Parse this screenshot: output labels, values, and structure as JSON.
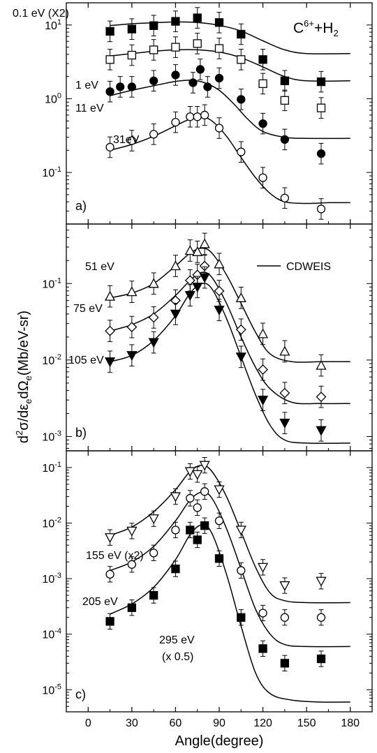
{
  "chart_data": {
    "type": "scatter",
    "title": "C6++H2",
    "title_parts": {
      "base": "C",
      "sup": "6+",
      "mid": "+H",
      "sub": "2"
    },
    "legend": {
      "entries": [
        "CDWEIS"
      ],
      "placement": "top-right of panel b"
    },
    "xlabel": "Angle(degree)",
    "ylabel": "d2σ/dεe dΩe (Mb/eV-sr)",
    "ylabel_parts": {
      "d": "d",
      "two": "2",
      "sigma": "σ/dε",
      "e1": "e",
      "domega": "dΩ",
      "e2": "e",
      "units": "(Mb/eV-sr)"
    },
    "x_ticks": [
      0,
      30,
      60,
      90,
      120,
      150,
      180
    ],
    "xlim": [
      -15,
      195
    ],
    "yscale": "log",
    "panels": [
      {
        "label": "a)",
        "ylim": [
          0.02,
          20
        ],
        "y_ticks": [
          {
            "value": 0.1,
            "base": "10",
            "exp": "-1"
          },
          {
            "value": 1,
            "base": "10",
            "exp": "0"
          },
          {
            "value": 10,
            "base": "10",
            "exp": "1"
          }
        ],
        "series": [
          {
            "name": "0.1 eV (X2)",
            "marker": "filled-square",
            "x": [
              15,
              30,
              45,
              60,
              75,
              90,
              105,
              120,
              135,
              160
            ],
            "y": [
              8.2,
              8.8,
              9.8,
              11.2,
              12.5,
              10.8,
              7.5,
              3.4,
              1.75,
              1.7
            ],
            "fit": [
              [
                15,
                9.8
              ],
              [
                30,
                10.4
              ],
              [
                45,
                10.7
              ],
              [
                60,
                11
              ],
              [
                75,
                10.8
              ],
              [
                90,
                9.9
              ],
              [
                105,
                8.3
              ],
              [
                120,
                6.1
              ],
              [
                135,
                4.6
              ],
              [
                150,
                4.1
              ],
              [
                180,
                4.1
              ]
            ]
          },
          {
            "name": "1 eV",
            "marker": "open-square",
            "x": [
              15,
              30,
              45,
              60,
              75,
              90,
              105,
              120,
              135,
              160
            ],
            "y": [
              3.4,
              3.9,
              4.6,
              5,
              5.6,
              4.8,
              3.4,
              1.6,
              0.95,
              0.75
            ],
            "fit": [
              [
                15,
                3.8
              ],
              [
                30,
                4.1
              ],
              [
                45,
                4.4
              ],
              [
                60,
                4.6
              ],
              [
                75,
                4.6
              ],
              [
                90,
                4.3
              ],
              [
                105,
                3.6
              ],
              [
                120,
                2.7
              ],
              [
                135,
                2
              ],
              [
                150,
                1.75
              ],
              [
                180,
                1.75
              ]
            ]
          },
          {
            "name": "11 eV",
            "marker": "filled-circle",
            "x": [
              15,
              22,
              30,
              45,
              60,
              72,
              77,
              82,
              90,
              105,
              120,
              135,
              160
            ],
            "y": [
              1.25,
              1.45,
              1.45,
              1.75,
              2.1,
              1.65,
              2.5,
              1.45,
              1.9,
              0.98,
              0.46,
              0.28,
              0.18
            ],
            "fit": [
              [
                15,
                1.1
              ],
              [
                30,
                1.3
              ],
              [
                45,
                1.5
              ],
              [
                60,
                1.72
              ],
              [
                70,
                1.78
              ],
              [
                80,
                1.65
              ],
              [
                90,
                1.3
              ],
              [
                100,
                0.85
              ],
              [
                110,
                0.52
              ],
              [
                120,
                0.36
              ],
              [
                135,
                0.3
              ],
              [
                150,
                0.29
              ],
              [
                180,
                0.29
              ]
            ]
          },
          {
            "name": "31eV",
            "marker": "open-circle",
            "x": [
              15,
              30,
              45,
              60,
              70,
              75,
              80,
              90,
              105,
              120,
              135,
              160
            ],
            "y": [
              0.22,
              0.27,
              0.33,
              0.48,
              0.57,
              0.57,
              0.6,
              0.4,
              0.19,
              0.085,
              0.045,
              0.032
            ],
            "fit": [
              [
                15,
                0.2
              ],
              [
                30,
                0.24
              ],
              [
                45,
                0.31
              ],
              [
                60,
                0.43
              ],
              [
                70,
                0.53
              ],
              [
                78,
                0.56
              ],
              [
                85,
                0.5
              ],
              [
                95,
                0.31
              ],
              [
                105,
                0.16
              ],
              [
                115,
                0.085
              ],
              [
                125,
                0.052
              ],
              [
                135,
                0.04
              ],
              [
                150,
                0.038
              ],
              [
                165,
                0.039
              ],
              [
                180,
                0.039
              ]
            ]
          }
        ]
      },
      {
        "label": "b)",
        "ylim": [
          0.00065,
          0.6
        ],
        "y_ticks": [
          {
            "value": 0.001,
            "base": "10",
            "exp": "-3"
          },
          {
            "value": 0.01,
            "base": "10",
            "exp": "-2"
          },
          {
            "value": 0.1,
            "base": "10",
            "exp": "-1"
          }
        ],
        "series": [
          {
            "name": "51 eV",
            "marker": "open-triangle-up",
            "x": [
              15,
              30,
              45,
              60,
              70,
              75,
              80,
              90,
              105,
              120,
              135,
              160
            ],
            "y": [
              0.068,
              0.078,
              0.1,
              0.17,
              0.27,
              0.26,
              0.33,
              0.18,
              0.065,
              0.022,
              0.013,
              0.0085
            ],
            "fit": [
              [
                15,
                0.065
              ],
              [
                30,
                0.075
              ],
              [
                45,
                0.1
              ],
              [
                60,
                0.17
              ],
              [
                70,
                0.25
              ],
              [
                78,
                0.29
              ],
              [
                85,
                0.25
              ],
              [
                95,
                0.13
              ],
              [
                105,
                0.055
              ],
              [
                115,
                0.023
              ],
              [
                125,
                0.012
              ],
              [
                140,
                0.0095
              ],
              [
                160,
                0.0095
              ],
              [
                180,
                0.0095
              ]
            ]
          },
          {
            "name": "75 eV",
            "marker": "open-diamond",
            "x": [
              15,
              30,
              45,
              60,
              70,
              75,
              80,
              90,
              105,
              120,
              135,
              160
            ],
            "y": [
              0.024,
              0.027,
              0.036,
              0.06,
              0.11,
              0.13,
              0.17,
              0.08,
              0.025,
              0.0075,
              0.0037,
              0.0033
            ],
            "fit": [
              [
                15,
                0.024
              ],
              [
                30,
                0.029
              ],
              [
                45,
                0.04
              ],
              [
                60,
                0.07
              ],
              [
                70,
                0.11
              ],
              [
                78,
                0.14
              ],
              [
                85,
                0.12
              ],
              [
                95,
                0.055
              ],
              [
                105,
                0.02
              ],
              [
                115,
                0.008
              ],
              [
                125,
                0.0042
              ],
              [
                140,
                0.0028
              ],
              [
                160,
                0.0027
              ],
              [
                180,
                0.0027
              ]
            ]
          },
          {
            "name": "105 eV",
            "marker": "filled-triangle-down",
            "x": [
              15,
              30,
              45,
              60,
              70,
              75,
              80,
              90,
              105,
              120,
              135,
              160
            ],
            "y": [
              0.0095,
              0.0115,
              0.017,
              0.04,
              0.07,
              0.09,
              0.12,
              0.045,
              0.011,
              0.003,
              0.0015,
              0.0012
            ],
            "fit": [
              [
                15,
                0.0095
              ],
              [
                30,
                0.0115
              ],
              [
                45,
                0.018
              ],
              [
                60,
                0.038
              ],
              [
                70,
                0.075
              ],
              [
                78,
                0.1
              ],
              [
                85,
                0.085
              ],
              [
                95,
                0.035
              ],
              [
                105,
                0.011
              ],
              [
                115,
                0.0035
              ],
              [
                125,
                0.0014
              ],
              [
                135,
                0.0009
              ],
              [
                150,
                0.00082
              ],
              [
                180,
                0.00082
              ]
            ]
          }
        ]
      },
      {
        "label": "c)",
        "ylim": [
          4e-06,
          0.2
        ],
        "y_ticks": [
          {
            "value": 1e-05,
            "base": "10",
            "exp": "-5"
          },
          {
            "value": 0.0001,
            "base": "10",
            "exp": "-4"
          },
          {
            "value": 0.001,
            "base": "10",
            "exp": "-3"
          },
          {
            "value": 0.01,
            "base": "10",
            "exp": "-2"
          },
          {
            "value": 0.1,
            "base": "10",
            "exp": "-1"
          }
        ],
        "series": [
          {
            "name": "155 eV (x2)",
            "marker": "open-triangle-down",
            "x": [
              15,
              30,
              45,
              60,
              70,
              75,
              80,
              90,
              105,
              120,
              135,
              160
            ],
            "y": [
              0.0055,
              0.0072,
              0.012,
              0.03,
              0.085,
              0.075,
              0.11,
              0.04,
              0.0075,
              0.0016,
              0.00075,
              0.0009
            ],
            "fit": [
              [
                15,
                0.006
              ],
              [
                30,
                0.0085
              ],
              [
                45,
                0.016
              ],
              [
                60,
                0.04
              ],
              [
                70,
                0.085
              ],
              [
                78,
                0.11
              ],
              [
                85,
                0.085
              ],
              [
                95,
                0.03
              ],
              [
                105,
                0.007
              ],
              [
                115,
                0.0016
              ],
              [
                125,
                0.00055
              ],
              [
                135,
                0.0004
              ],
              [
                150,
                0.00037
              ],
              [
                180,
                0.00037
              ]
            ]
          },
          {
            "name": "205 eV",
            "marker": "open-circle",
            "x": [
              15,
              30,
              45,
              60,
              70,
              75,
              80,
              90,
              105,
              120,
              135,
              160
            ],
            "y": [
              0.0012,
              0.0018,
              0.0029,
              0.0075,
              0.028,
              0.019,
              0.037,
              0.011,
              0.0014,
              0.00024,
              0.0002,
              0.0002
            ],
            "fit": [
              [
                15,
                0.0014
              ],
              [
                30,
                0.002
              ],
              [
                45,
                0.0038
              ],
              [
                60,
                0.011
              ],
              [
                70,
                0.026
              ],
              [
                78,
                0.036
              ],
              [
                85,
                0.028
              ],
              [
                95,
                0.008
              ],
              [
                105,
                0.0015
              ],
              [
                115,
                0.00028
              ],
              [
                125,
                0.0001
              ],
              [
                135,
                6.5e-05
              ],
              [
                150,
                6e-05
              ],
              [
                180,
                6e-05
              ]
            ]
          },
          {
            "name": "295 eV (x 0.5)",
            "label_lines": [
              "295 eV",
              "(x 0.5)"
            ],
            "marker": "filled-square",
            "x": [
              15,
              30,
              45,
              60,
              70,
              75,
              80,
              90,
              105,
              120,
              135,
              160
            ],
            "y": [
              0.00017,
              0.0003,
              0.0005,
              0.0015,
              0.0075,
              0.005,
              0.009,
              0.0023,
              0.0002,
              5.5e-05,
              3e-05,
              3.6e-05
            ],
            "fit": [
              [
                15,
                0.00023
              ],
              [
                30,
                0.00035
              ],
              [
                45,
                0.0007
              ],
              [
                60,
                0.0022
              ],
              [
                70,
                0.0062
              ],
              [
                78,
                0.0093
              ],
              [
                85,
                0.0065
              ],
              [
                95,
                0.0012
              ],
              [
                105,
                0.00014
              ],
              [
                115,
                2e-05
              ],
              [
                125,
                8.5e-06
              ],
              [
                140,
                6.5e-06
              ],
              [
                160,
                6e-06
              ],
              [
                180,
                6e-06
              ]
            ]
          }
        ]
      }
    ]
  }
}
